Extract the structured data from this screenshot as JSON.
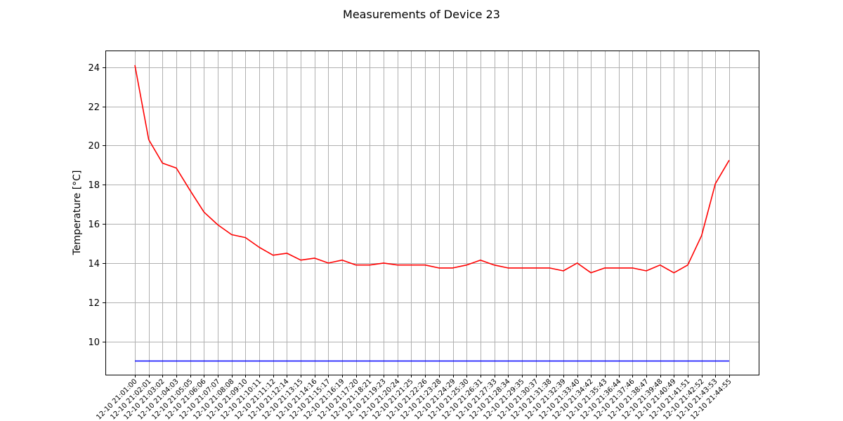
{
  "chart_data": {
    "type": "line",
    "title": "Measurements of Device 23",
    "xlabel": "",
    "ylabel": "Temperature [°C]",
    "ylim": [
      8.3,
      24.85
    ],
    "yticks": [
      10,
      12,
      14,
      16,
      18,
      20,
      22,
      24
    ],
    "grid": true,
    "x": [
      "12-10 21:01:00",
      "12-10 21:02:01",
      "12-10 21:03:02",
      "12-10 21:04:03",
      "12-10 21:05:05",
      "12-10 21:06:06",
      "12-10 21:07:07",
      "12-10 21:08:08",
      "12-10 21:09:10",
      "12-10 21:10:11",
      "12-10 21:11:12",
      "12-10 21:12:14",
      "12-10 21:13:15",
      "12-10 21:14:16",
      "12-10 21:15:17",
      "12-10 21:16:19",
      "12-10 21:17:20",
      "12-10 21:18:21",
      "12-10 21:19:23",
      "12-10 21:20:24",
      "12-10 21:21:25",
      "12-10 21:22:26",
      "12-10 21:23:28",
      "12-10 21:24:29",
      "12-10 21:25:30",
      "12-10 21:26:31",
      "12-10 21:27:33",
      "12-10 21:28:34",
      "12-10 21:29:35",
      "12-10 21:30:37",
      "12-10 21:31:38",
      "12-10 21:32:39",
      "12-10 21:33:40",
      "12-10 21:34:42",
      "12-10 21:35:43",
      "12-10 21:36:44",
      "12-10 21:37:46",
      "12-10 21:38:47",
      "12-10 21:39:48",
      "12-10 21:40:49",
      "12-10 21:41:51",
      "12-10 21:42:52",
      "12-10 21:43:53",
      "12-10 21:44:55"
    ],
    "series": [
      {
        "color": "#ff0000",
        "values": [
          24.1,
          20.3,
          19.1,
          18.85,
          17.7,
          16.6,
          15.95,
          15.45,
          15.3,
          14.8,
          14.4,
          14.5,
          14.15,
          14.25,
          14.0,
          14.15,
          13.9,
          13.9,
          14.0,
          13.9,
          13.9,
          13.9,
          13.75,
          13.75,
          13.9,
          14.15,
          13.9,
          13.75,
          13.75,
          13.75,
          13.75,
          13.6,
          14.0,
          13.5,
          13.75,
          13.75,
          13.75,
          13.6,
          13.9,
          13.5,
          13.9,
          15.4,
          18.05,
          19.25
        ]
      },
      {
        "color": "#0000ff",
        "values": [
          9,
          9,
          9,
          9,
          9,
          9,
          9,
          9,
          9,
          9,
          9,
          9,
          9,
          9,
          9,
          9,
          9,
          9,
          9,
          9,
          9,
          9,
          9,
          9,
          9,
          9,
          9,
          9,
          9,
          9,
          9,
          9,
          9,
          9,
          9,
          9,
          9,
          9,
          9,
          9,
          9,
          9,
          9,
          9
        ]
      }
    ]
  }
}
